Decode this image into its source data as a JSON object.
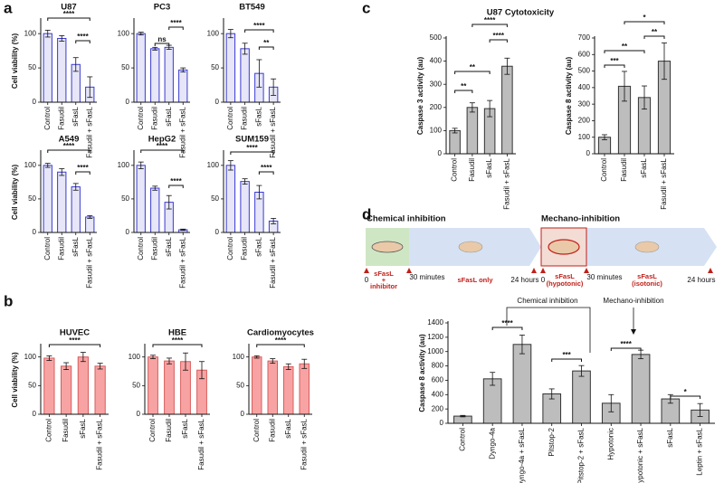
{
  "panel_labels": [
    "a",
    "b",
    "c",
    "d"
  ],
  "panel_c_title": "U87 Cytotoxicity",
  "diagram": {
    "chemical": {
      "title": "Chemical inhibition",
      "start_label": [
        "sFasL",
        "+",
        "inhibitor"
      ],
      "t0": "0",
      "t1": "30 minutes",
      "phase2": "sFasL only",
      "t2": "24 hours"
    },
    "mechano": {
      "title": "Mechano-inhibition",
      "t0": "0",
      "phase1": [
        "sFasL",
        "(hypotonic)"
      ],
      "t1": "30 minutes",
      "phase2": [
        "sFasL",
        "(isotonic)"
      ],
      "t2": "24 hours"
    }
  },
  "chart_data": [
    {
      "type": "bar",
      "title": "U87",
      "ylabel": "Cell viability (%)",
      "categories": [
        "Control",
        "Fasudil",
        "sFasL",
        "Fasudil + sFasL"
      ],
      "values": [
        100,
        93,
        55,
        22
      ],
      "errors": [
        5,
        4,
        10,
        15
      ],
      "ylim": [
        0,
        120
      ],
      "yticks": [
        0,
        50,
        100
      ],
      "color": "#e6e6f8",
      "edge": "#3a3ad0",
      "annotations": [
        "****",
        "****"
      ]
    },
    {
      "type": "bar",
      "title": "PC3",
      "categories": [
        "Control",
        "Fasudil",
        "sFasL",
        "Fasudil + sFasL"
      ],
      "values": [
        100,
        78,
        80,
        47
      ],
      "errors": [
        2,
        2,
        3,
        3
      ],
      "ylim": [
        0,
        120
      ],
      "yticks": [
        0,
        50,
        100
      ],
      "color": "#e6e6f8",
      "edge": "#3a3ad0",
      "annotations": [
        "ns",
        "****"
      ]
    },
    {
      "type": "bar",
      "title": "BT549",
      "categories": [
        "Control",
        "Fasudil",
        "sFasL",
        "Fasudil + sFasL"
      ],
      "values": [
        100,
        78,
        42,
        22
      ],
      "errors": [
        6,
        8,
        20,
        12
      ],
      "ylim": [
        0,
        120
      ],
      "yticks": [
        0,
        50,
        100
      ],
      "color": "#e6e6f8",
      "edge": "#3a3ad0",
      "annotations": [
        "****",
        "**"
      ]
    },
    {
      "type": "bar",
      "title": "A549",
      "ylabel": "Cell viability (%)",
      "categories": [
        "Control",
        "Fasudil",
        "sFasL",
        "Fasudil + sFasL"
      ],
      "values": [
        100,
        90,
        68,
        23
      ],
      "errors": [
        3,
        5,
        5,
        2
      ],
      "ylim": [
        0,
        120
      ],
      "yticks": [
        0,
        50,
        100
      ],
      "color": "#e6e6f8",
      "edge": "#3a3ad0",
      "annotations": [
        "****",
        "****"
      ]
    },
    {
      "type": "bar",
      "title": "HepG2",
      "categories": [
        "Control",
        "Fasudil",
        "sFasL",
        "Fasudil + sFasL"
      ],
      "values": [
        100,
        66,
        45,
        4
      ],
      "errors": [
        5,
        3,
        10,
        1
      ],
      "ylim": [
        0,
        120
      ],
      "yticks": [
        0,
        50,
        100
      ],
      "color": "#e6e6f8",
      "edge": "#3a3ad0",
      "annotations": [
        "****",
        "****"
      ]
    },
    {
      "type": "bar",
      "title": "SUM159",
      "categories": [
        "Control",
        "Fasudil",
        "sFasL",
        "Fasudil + sFasL"
      ],
      "values": [
        100,
        76,
        60,
        17
      ],
      "errors": [
        7,
        4,
        10,
        4
      ],
      "ylim": [
        0,
        120
      ],
      "yticks": [
        0,
        50,
        100
      ],
      "color": "#e6e6f8",
      "edge": "#3a3ad0",
      "annotations": [
        "****",
        "****"
      ]
    },
    {
      "type": "bar",
      "title": "HUVEC",
      "ylabel": "Cell viability (%)",
      "categories": [
        "Control",
        "Fasudil",
        "sFasL",
        "Fasudil + sFasL"
      ],
      "values": [
        98,
        84,
        100,
        84
      ],
      "errors": [
        4,
        6,
        8,
        5
      ],
      "ylim": [
        0,
        120
      ],
      "yticks": [
        0,
        50,
        100
      ],
      "color": "#f8a3a3",
      "edge": "#d85c5c",
      "annotations": [
        "****"
      ]
    },
    {
      "type": "bar",
      "title": "HBE",
      "categories": [
        "Control",
        "Fasudil",
        "sFasL",
        "Fasudil + sFasL"
      ],
      "values": [
        100,
        93,
        92,
        77
      ],
      "errors": [
        3,
        5,
        15,
        15
      ],
      "ylim": [
        0,
        120
      ],
      "yticks": [
        0,
        50,
        100
      ],
      "color": "#f8a3a3",
      "edge": "#d85c5c",
      "annotations": [
        "****"
      ]
    },
    {
      "type": "bar",
      "title": "Cardiomyocytes",
      "categories": [
        "Control",
        "Fasudil",
        "sFasL",
        "Fasudil + sFasL"
      ],
      "values": [
        100,
        93,
        83,
        88
      ],
      "errors": [
        2,
        4,
        5,
        8
      ],
      "ylim": [
        0,
        120
      ],
      "yticks": [
        0,
        50,
        100
      ],
      "color": "#f8a3a3",
      "edge": "#d85c5c",
      "annotations": [
        "****"
      ]
    },
    {
      "type": "bar",
      "ylabel": "Caspase 3 activity (au)",
      "categories": [
        "Control",
        "Fasudil",
        "sFasL",
        "Fasudil + sFasL"
      ],
      "values": [
        100,
        200,
        195,
        378
      ],
      "errors": [
        10,
        20,
        35,
        35
      ],
      "ylim": [
        0,
        500
      ],
      "yticks": [
        0,
        100,
        200,
        300,
        400,
        500
      ],
      "color": "#bdbdbd",
      "edge": "#333333",
      "annotations": [
        "****",
        "****",
        "**",
        "**"
      ]
    },
    {
      "type": "bar",
      "ylabel": "Caspase 8 activity (au)",
      "categories": [
        "Control",
        "Fasudil",
        "sFasL",
        "Fasudil + sFasL"
      ],
      "values": [
        100,
        408,
        340,
        560
      ],
      "errors": [
        15,
        90,
        70,
        110
      ],
      "ylim": [
        0,
        700
      ],
      "yticks": [
        0,
        100,
        200,
        300,
        400,
        500,
        600,
        700
      ],
      "color": "#bdbdbd",
      "edge": "#333333",
      "annotations": [
        "*",
        "**",
        "**",
        "***"
      ]
    },
    {
      "type": "bar",
      "ylabel": "Caspase 8 activity (au)",
      "categories": [
        "Control",
        "Dyngo-4a",
        "Dyngo-4a + sFasL",
        "Pitstop-2",
        "Pitstop-2 + sFasL",
        "Hypotonic",
        "Hypotonic + sFasL",
        "sFasL",
        "Leptin + sFasL"
      ],
      "values": [
        100,
        620,
        1100,
        410,
        730,
        280,
        960,
        340,
        185
      ],
      "errors": [
        10,
        90,
        130,
        70,
        75,
        120,
        60,
        60,
        90
      ],
      "ylim": [
        0,
        1400
      ],
      "yticks": [
        0,
        200,
        400,
        600,
        800,
        1000,
        1200,
        1400
      ],
      "color": "#bdbdbd",
      "edge": "#333333",
      "annotations": [
        "****",
        "***",
        "****",
        "*"
      ],
      "callouts": [
        "Chemical inhibition",
        "Mechano-inhibition"
      ]
    }
  ]
}
